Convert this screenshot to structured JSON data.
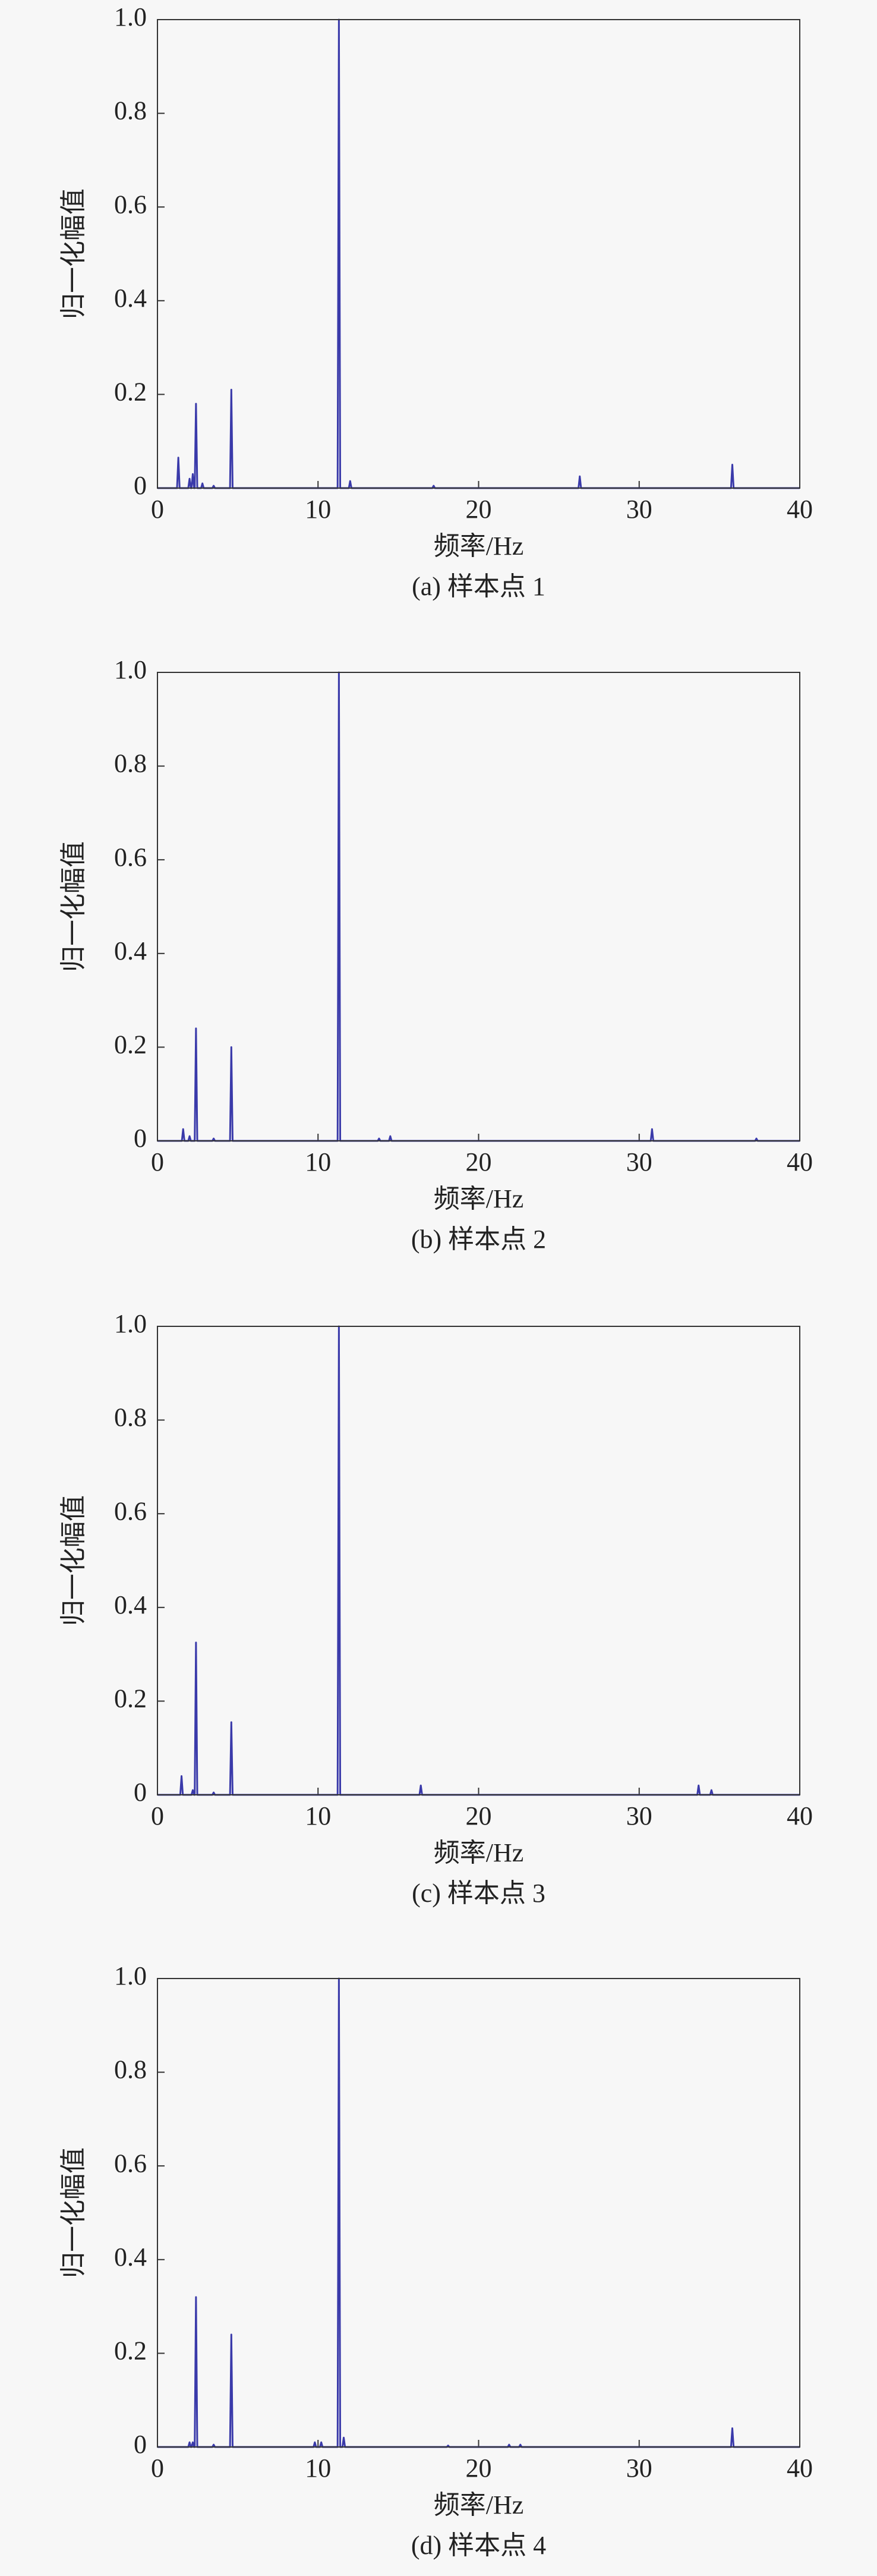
{
  "chart_data": [
    {
      "type": "line",
      "y_label": "归一化幅值",
      "x_label": "频率/Hz",
      "caption": "(a) 样本点 1",
      "x": [
        0,
        1.22,
        1.3,
        1.38,
        1.92,
        2.0,
        2.08,
        2.12,
        2.2,
        2.28,
        2.32,
        2.4,
        2.48,
        2.72,
        2.8,
        2.88,
        3.42,
        3.5,
        3.58,
        4.52,
        4.6,
        4.68,
        11.22,
        11.3,
        11.38,
        11.92,
        12.0,
        12.08,
        17.12,
        17.2,
        17.28,
        26.22,
        26.3,
        26.38,
        35.72,
        35.8,
        35.88,
        40
      ],
      "series": [
        {
          "color": "#3a3aaa",
          "values": [
            0,
            0,
            0.065,
            0,
            0,
            0.02,
            0,
            0,
            0.03,
            0,
            0,
            0.18,
            0,
            0,
            0.01,
            0,
            0,
            0.005,
            0,
            0,
            0.21,
            0,
            0,
            1,
            0,
            0,
            0.015,
            0,
            0,
            0.005,
            0,
            0,
            0.025,
            0,
            0,
            0.05,
            0,
            0
          ]
        }
      ],
      "xlim": [
        0,
        40
      ],
      "xticks": [
        0,
        10,
        20,
        30,
        40
      ],
      "ylim": [
        0,
        1
      ],
      "yticks": [
        0,
        0.2,
        0.4,
        0.6,
        0.8,
        {
          "value": 1,
          "label": "1.0"
        }
      ]
    },
    {
      "type": "line",
      "y_label": "归一化幅值",
      "x_label": "频率/Hz",
      "caption": "(b) 样本点 2",
      "x": [
        0,
        1.52,
        1.6,
        1.68,
        1.92,
        2.0,
        2.08,
        2.32,
        2.4,
        2.48,
        3.42,
        3.5,
        3.58,
        4.52,
        4.6,
        4.68,
        11.22,
        11.3,
        11.38,
        13.72,
        13.8,
        13.88,
        14.42,
        14.5,
        14.58,
        30.72,
        30.8,
        30.88,
        37.22,
        37.3,
        37.38,
        40
      ],
      "series": [
        {
          "color": "#3a3aaa",
          "values": [
            0,
            0,
            0.025,
            0,
            0,
            0.01,
            0,
            0,
            0.24,
            0,
            0,
            0.005,
            0,
            0,
            0.2,
            0,
            0,
            1,
            0,
            0,
            0.005,
            0,
            0,
            0.01,
            0,
            0,
            0.025,
            0,
            0,
            0.005,
            0,
            0
          ]
        }
      ],
      "xlim": [
        0,
        40
      ],
      "xticks": [
        0,
        10,
        20,
        30,
        40
      ],
      "ylim": [
        0,
        1
      ],
      "yticks": [
        0,
        0.2,
        0.4,
        0.6,
        0.8,
        {
          "value": 1,
          "label": "1.0"
        }
      ]
    },
    {
      "type": "line",
      "y_label": "归一化幅值",
      "x_label": "频率/Hz",
      "caption": "(c) 样本点 3",
      "x": [
        0,
        1.42,
        1.5,
        1.58,
        2.12,
        2.2,
        2.28,
        2.32,
        2.4,
        2.48,
        3.42,
        3.5,
        3.58,
        4.52,
        4.6,
        4.68,
        11.22,
        11.3,
        11.38,
        16.32,
        16.4,
        16.48,
        33.62,
        33.7,
        33.78,
        34.42,
        34.5,
        34.58,
        40
      ],
      "series": [
        {
          "color": "#3a3aaa",
          "values": [
            0,
            0,
            0.04,
            0,
            0,
            0.01,
            0,
            0,
            0.325,
            0,
            0,
            0.005,
            0,
            0,
            0.155,
            0,
            0,
            1,
            0,
            0,
            0.02,
            0,
            0,
            0.02,
            0,
            0,
            0.01,
            0,
            0
          ]
        }
      ],
      "xlim": [
        0,
        40
      ],
      "xticks": [
        0,
        10,
        20,
        30,
        40
      ],
      "ylim": [
        0,
        1
      ],
      "yticks": [
        0,
        0.2,
        0.4,
        0.6,
        0.8,
        {
          "value": 1,
          "label": "1.0"
        }
      ]
    },
    {
      "type": "line",
      "y_label": "归一化幅值",
      "x_label": "频率/Hz",
      "caption": "(d) 样本点 4",
      "x": [
        0,
        1.92,
        2.0,
        2.08,
        2.12,
        2.2,
        2.28,
        2.32,
        2.4,
        2.48,
        3.42,
        3.5,
        3.58,
        4.52,
        4.6,
        4.68,
        9.72,
        9.8,
        9.88,
        10.12,
        10.2,
        10.28,
        11.22,
        11.3,
        11.38,
        11.52,
        11.6,
        11.68,
        18.02,
        18.1,
        18.18,
        21.82,
        21.9,
        21.98,
        22.52,
        22.6,
        22.68,
        35.72,
        35.8,
        35.88,
        40
      ],
      "series": [
        {
          "color": "#3a3aaa",
          "values": [
            0,
            0,
            0.01,
            0,
            0,
            0.01,
            0,
            0,
            0.32,
            0,
            0,
            0.005,
            0,
            0,
            0.24,
            0,
            0,
            0.01,
            0,
            0,
            0.01,
            0,
            0,
            1,
            0,
            0,
            0.02,
            0,
            0,
            0.003,
            0,
            0,
            0.005,
            0,
            0,
            0.005,
            0,
            0,
            0.04,
            0,
            0
          ]
        }
      ],
      "xlim": [
        0,
        40
      ],
      "xticks": [
        0,
        10,
        20,
        30,
        40
      ],
      "ylim": [
        0,
        1
      ],
      "yticks": [
        0,
        0.2,
        0.4,
        0.6,
        0.8,
        {
          "value": 1,
          "label": "1.0"
        }
      ]
    }
  ]
}
